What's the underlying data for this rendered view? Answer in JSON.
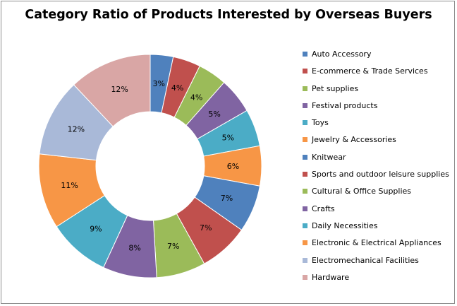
{
  "chart_data": {
    "type": "pie",
    "donut": true,
    "title": "Category Ratio of Products Interested by Overseas Buyers",
    "legend_position": "right",
    "categories": [
      "Auto Accessory",
      "E-commerce & Trade Services",
      "Pet supplies",
      "Festival products",
      "Toys",
      "Jewelry & Accessories",
      "Knitwear",
      "Sports and outdoor leisure supplies",
      "Cultural & Office Supplies",
      "Crafts",
      "Daily Necessities",
      "Electronic & Electrical Appliances",
      "Electromechanical Facilities",
      "Hardware"
    ],
    "values": [
      3.4,
      4.1,
      4.3,
      5.3,
      5.5,
      5.9,
      7.0,
      7.4,
      7.3,
      8.0,
      9.2,
      11.1,
      11.5,
      12.3
    ],
    "labels": [
      "3%",
      "4%",
      "4%",
      "5%",
      "5%",
      "6%",
      "7%",
      "7%",
      "7%",
      "8%",
      "9%",
      "11%",
      "12%",
      "12%"
    ],
    "colors": [
      "#4f81bd",
      "#c0504d",
      "#9bbb59",
      "#8064a2",
      "#4bacc6",
      "#f79646",
      "#4f81bd",
      "#c0504d",
      "#9bbb59",
      "#8064a2",
      "#4bacc6",
      "#f79646",
      "#a9b9d8",
      "#d9a6a5"
    ]
  }
}
